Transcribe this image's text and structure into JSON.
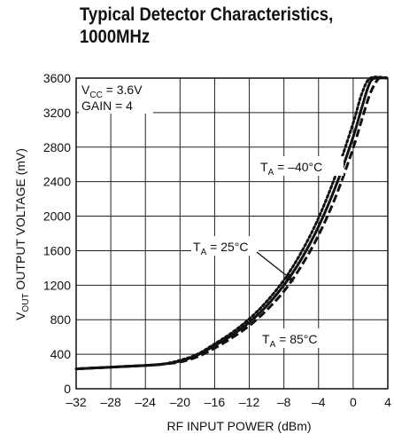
{
  "chart_data": {
    "type": "line",
    "title_line1": "Typical Detector Characteristics,",
    "title_line2": "1000MHz",
    "xlabel": "RF INPUT POWER (dBm)",
    "ylabel_main": "V",
    "ylabel_sub": "OUT",
    "ylabel_rest": " OUTPUT VOLTAGE (mV)",
    "xlim": [
      -32,
      4
    ],
    "ylim": [
      0,
      3600
    ],
    "xticks": [
      "–32",
      "–28",
      "–24",
      "–20",
      "–16",
      "–12",
      "–8",
      "–4",
      "0",
      "4"
    ],
    "yticks": [
      "0",
      "400",
      "800",
      "1200",
      "1600",
      "2000",
      "2400",
      "2800",
      "3200",
      "3600"
    ],
    "grid": true,
    "conditions": {
      "vcc_main": "V",
      "vcc_sub": "CC",
      "vcc_rest": " = 3.6V",
      "gain": "GAIN = 4"
    },
    "series": [
      {
        "name_main": "T",
        "name_sub": "A",
        "name_rest": " = –40°C",
        "style": "dotted",
        "x": [
          -32,
          -28,
          -24,
          -22,
          -20,
          -18,
          -16,
          -14,
          -12,
          -10,
          -8,
          -6,
          -4,
          -2,
          0,
          1,
          2,
          4
        ],
        "y": [
          230,
          250,
          270,
          285,
          330,
          400,
          520,
          650,
          810,
          1010,
          1260,
          1580,
          1980,
          2480,
          3080,
          3420,
          3600,
          3600
        ]
      },
      {
        "name_main": "T",
        "name_sub": "A",
        "name_rest": " = 25°C",
        "style": "solid",
        "x": [
          -32,
          -28,
          -24,
          -22,
          -20,
          -18,
          -16,
          -14,
          -12,
          -10,
          -8,
          -6,
          -4,
          -2,
          0,
          1,
          2,
          3,
          4
        ],
        "y": [
          230,
          250,
          270,
          285,
          320,
          390,
          500,
          620,
          770,
          960,
          1200,
          1500,
          1880,
          2350,
          2920,
          3260,
          3560,
          3600,
          3600
        ]
      },
      {
        "name_main": "T",
        "name_sub": "A",
        "name_rest": " = 85°C",
        "style": "dashed",
        "x": [
          -32,
          -28,
          -24,
          -22,
          -20,
          -18,
          -16,
          -14,
          -12,
          -10,
          -8,
          -6,
          -4,
          -2,
          0,
          1,
          2,
          3,
          4
        ],
        "y": [
          230,
          250,
          270,
          285,
          310,
          370,
          470,
          590,
          730,
          910,
          1130,
          1420,
          1780,
          2230,
          2790,
          3120,
          3430,
          3600,
          3600
        ]
      }
    ]
  }
}
